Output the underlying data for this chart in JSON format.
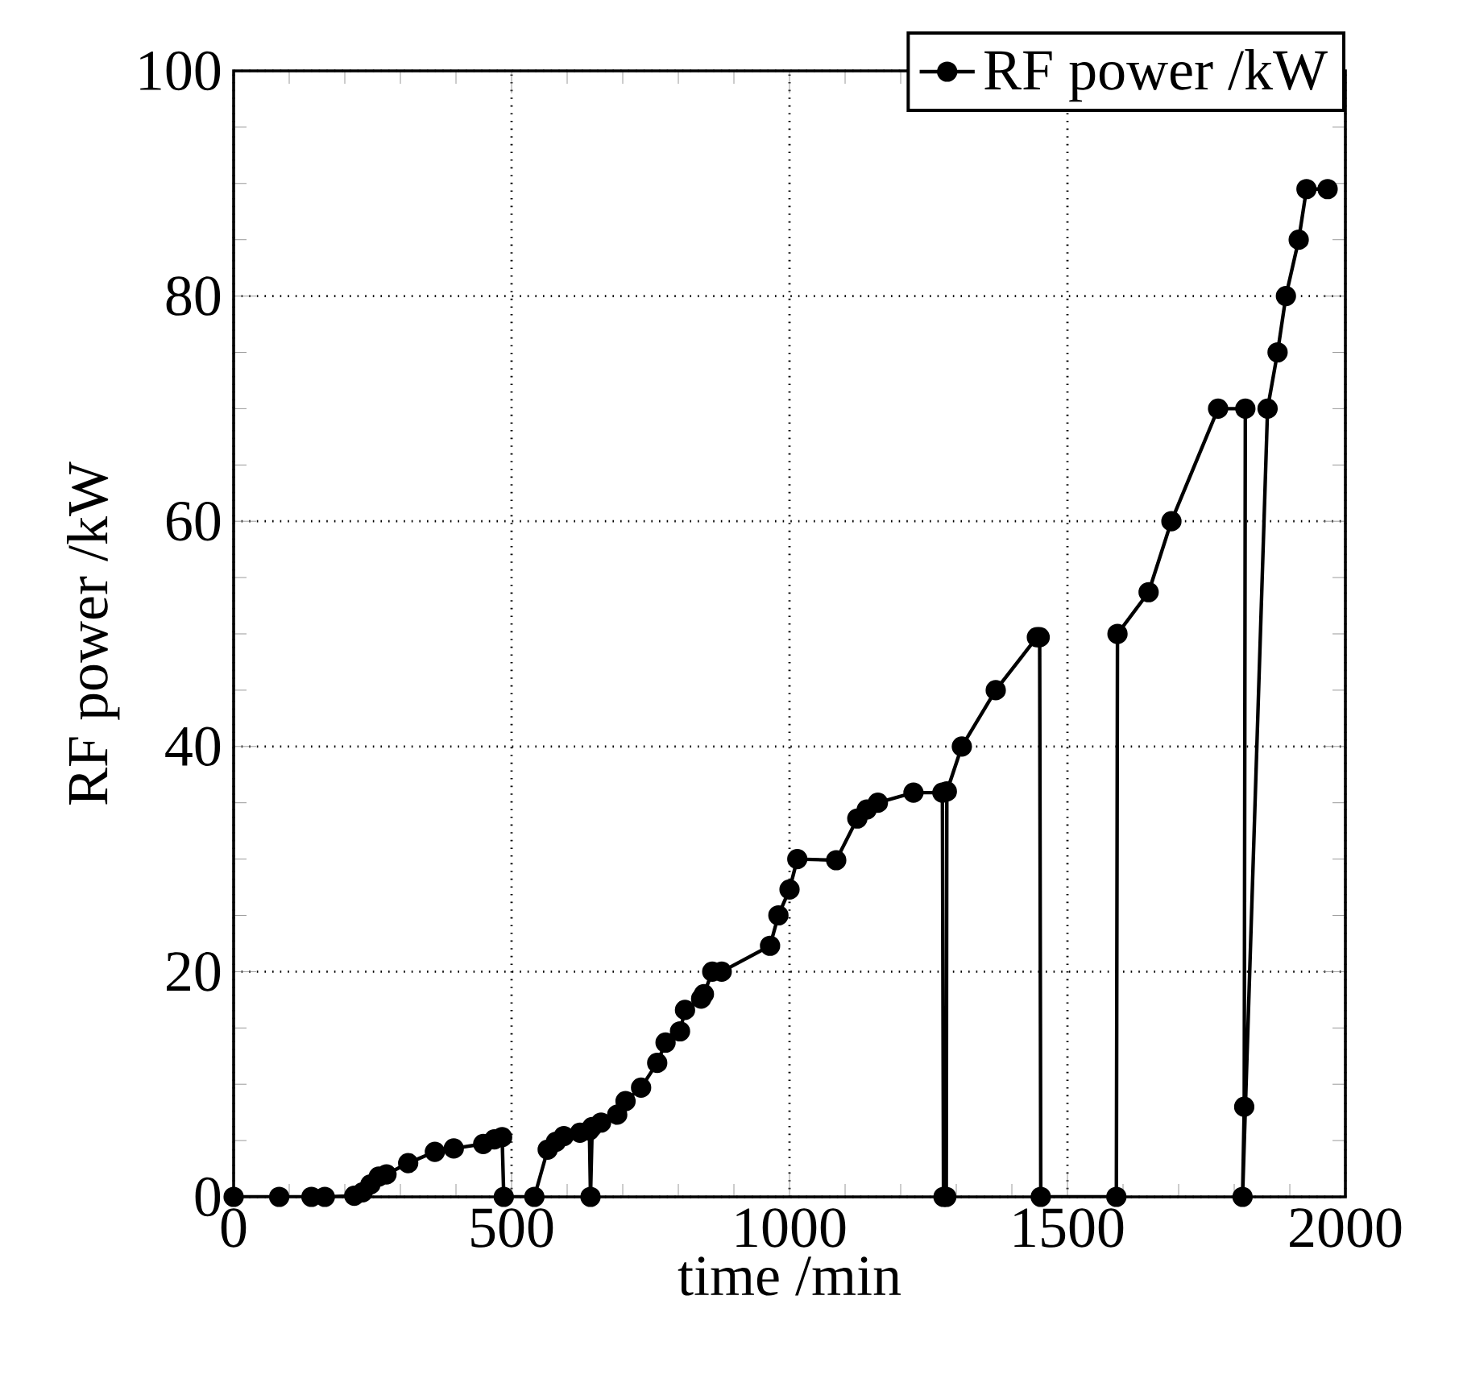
{
  "chart_data": {
    "type": "line",
    "xlabel": "time /min",
    "ylabel": "RF power /kW",
    "x": [
      0,
      82,
      140,
      164,
      217,
      232,
      246,
      261,
      275,
      314,
      362,
      396,
      449,
      469,
      483,
      486,
      541,
      565,
      580,
      594,
      623,
      640,
      642,
      645,
      661,
      690,
      705,
      733,
      762,
      777,
      803,
      812,
      841,
      846,
      861,
      878,
      965,
      980,
      1000,
      1014,
      1084,
      1122,
      1139,
      1159,
      1223,
      1275,
      1277,
      1282,
      1283,
      1310,
      1371,
      1445,
      1450,
      1452,
      1588,
      1590,
      1646,
      1687,
      1771,
      1820,
      1818,
      1815,
      1860,
      1878,
      1893,
      1916,
      1930,
      1968
    ],
    "series": [
      {
        "name": "RF power /kW",
        "color": "#000000",
        "values": [
          0,
          0,
          0,
          0,
          0.1,
          0.4,
          1.1,
          1.8,
          2,
          3,
          4,
          4.3,
          4.7,
          5.1,
          5.3,
          0,
          0,
          4.2,
          4.9,
          5.4,
          5.7,
          5.9,
          0,
          6.2,
          6.6,
          7.3,
          8.5,
          9.7,
          11.9,
          13.7,
          14.7,
          16.6,
          17.6,
          18,
          20,
          20,
          22.3,
          25,
          27.3,
          30,
          29.9,
          33.6,
          34.4,
          35,
          35.9,
          35.9,
          0,
          0,
          36,
          40,
          45,
          49.7,
          49.7,
          0,
          0,
          50,
          53.7,
          60,
          70,
          70,
          8,
          0,
          70,
          75,
          80,
          85,
          89.5,
          89.5
        ]
      }
    ],
    "xlim": [
      0,
      2000
    ],
    "ylim": [
      0,
      100
    ],
    "xticks": [
      0,
      500,
      1000,
      1500,
      2000
    ],
    "yticks": [
      0,
      20,
      40,
      60,
      80,
      100
    ],
    "grid": true,
    "legend": "top right",
    "marker": "circle",
    "line_style": "solid"
  }
}
